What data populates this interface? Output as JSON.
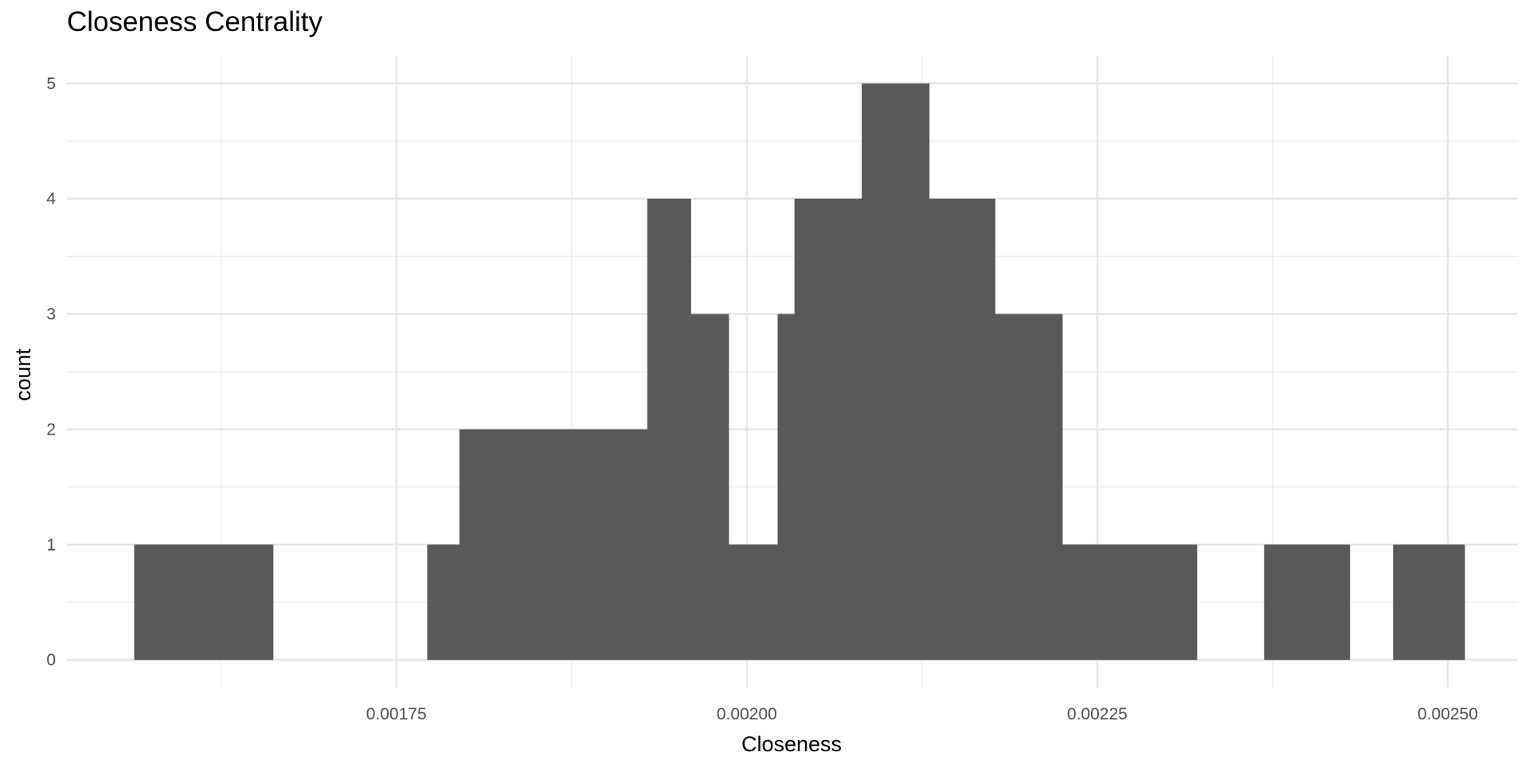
{
  "chart_data": {
    "type": "bar",
    "title": "Closeness Centrality",
    "xlabel": "Closeness",
    "ylabel": "count",
    "xlim": [
      0.001515,
      0.00255
    ],
    "ylim": [
      -0.24,
      5.24
    ],
    "x_ticks": [
      0.00175,
      0.002,
      0.00225,
      0.0025
    ],
    "x_tick_labels": [
      "0.00175",
      "0.00200",
      "0.00225",
      "0.00250"
    ],
    "y_ticks": [
      0,
      1,
      2,
      3,
      4,
      5
    ],
    "y_tick_labels": [
      "0",
      "1",
      "2",
      "3",
      "4",
      "5"
    ],
    "grid": true,
    "bar_color": "#595959",
    "bins": [
      {
        "x0": 0.001563,
        "x1": 0.001613,
        "count": 1
      },
      {
        "x0": 0.001613,
        "x1": 0.001662,
        "count": 1
      },
      {
        "x0": 0.001772,
        "x1": 0.001795,
        "count": 1
      },
      {
        "x0": 0.001795,
        "x1": 0.001823,
        "count": 2
      },
      {
        "x0": 0.001823,
        "x1": 0.001849,
        "count": 2
      },
      {
        "x0": 0.001849,
        "x1": 0.001875,
        "count": 2
      },
      {
        "x0": 0.001875,
        "x1": 0.001902,
        "count": 2
      },
      {
        "x0": 0.001902,
        "x1": 0.001929,
        "count": 2
      },
      {
        "x0": 0.001929,
        "x1": 0.00196,
        "count": 4
      },
      {
        "x0": 0.00196,
        "x1": 0.001987,
        "count": 3
      },
      {
        "x0": 0.001987,
        "x1": 0.002022,
        "count": 1
      },
      {
        "x0": 0.002022,
        "x1": 0.002034,
        "count": 3
      },
      {
        "x0": 0.002034,
        "x1": 0.002082,
        "count": 4
      },
      {
        "x0": 0.002082,
        "x1": 0.00213,
        "count": 5
      },
      {
        "x0": 0.00213,
        "x1": 0.002177,
        "count": 4
      },
      {
        "x0": 0.002177,
        "x1": 0.002225,
        "count": 3
      },
      {
        "x0": 0.002225,
        "x1": 0.002272,
        "count": 1
      },
      {
        "x0": 0.002272,
        "x1": 0.002321,
        "count": 1
      },
      {
        "x0": 0.002369,
        "x1": 0.00243,
        "count": 1
      },
      {
        "x0": 0.002461,
        "x1": 0.002512,
        "count": 1
      }
    ]
  }
}
